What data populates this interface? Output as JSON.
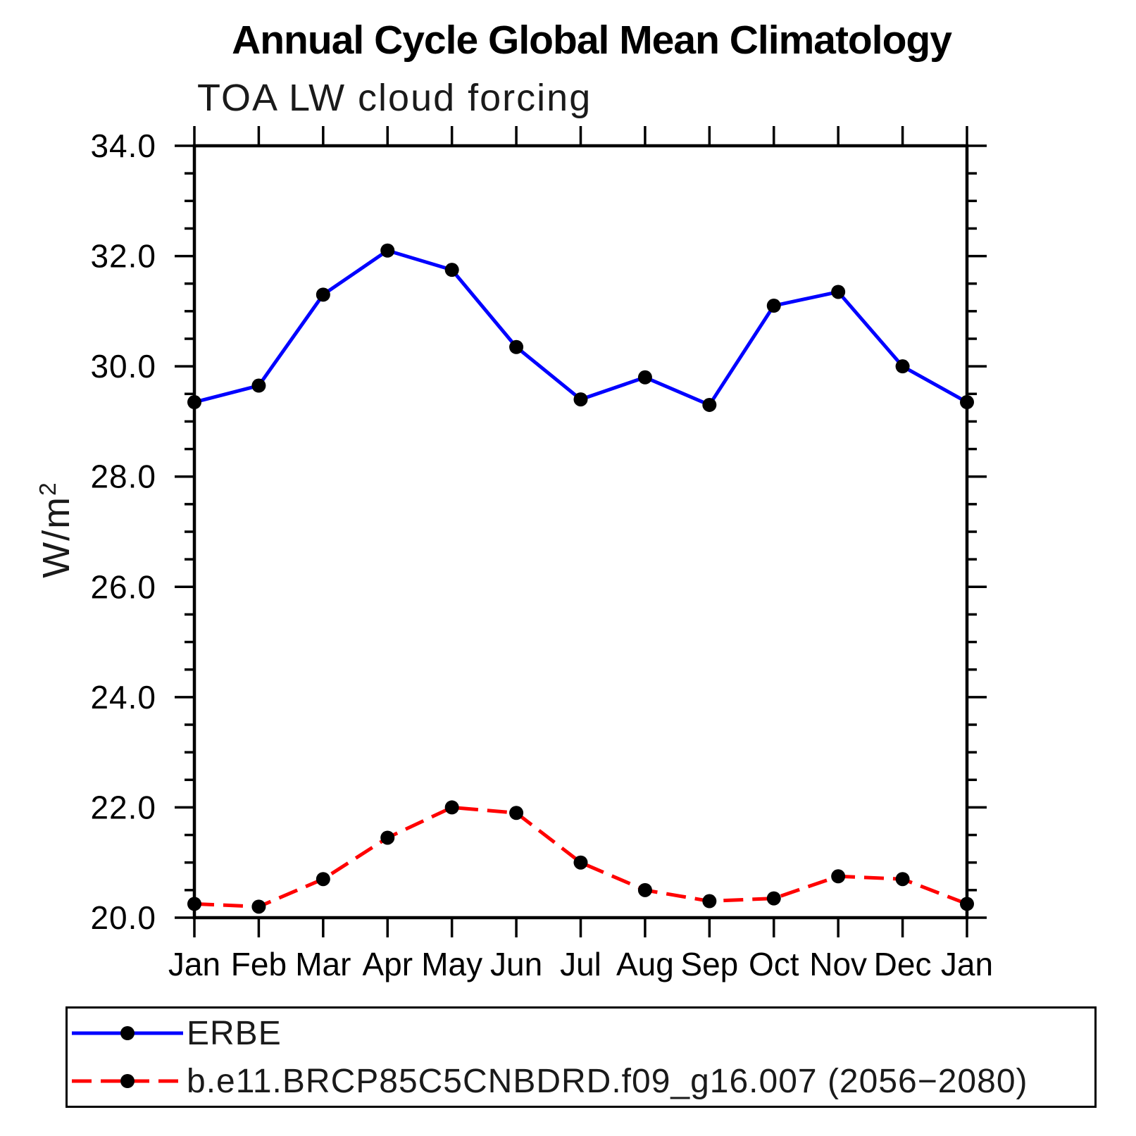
{
  "page": {
    "background": "#ffffff"
  },
  "chart_data": {
    "type": "line",
    "title": "Annual Cycle Global Mean Climatology",
    "subtitle": "TOA LW cloud forcing",
    "ylabel": {
      "base": "W/m",
      "sup": "2"
    },
    "ylim": [
      20.0,
      34.0
    ],
    "y_major_tick_interval": 2.0,
    "y_minor_tick_interval": 0.5,
    "y_major_tick_labels": [
      "20.0",
      "22.0",
      "24.0",
      "26.0",
      "28.0",
      "30.0",
      "32.0",
      "34.0"
    ],
    "x_tick_labels": [
      "Jan",
      "Feb",
      "Mar",
      "Apr",
      "May",
      "Jun",
      "Jul",
      "Aug",
      "Sep",
      "Oct",
      "Nov",
      "Dec",
      "Jan"
    ],
    "grid": false,
    "legend_position": "bottom",
    "axis_color": "#000000",
    "marker_color": "#000000",
    "series": [
      {
        "name": "ERBE",
        "color": "#0000ff",
        "line_style": "solid",
        "marker": "filled-circle",
        "values": [
          29.35,
          29.65,
          31.3,
          32.1,
          31.75,
          30.35,
          29.4,
          29.8,
          29.3,
          31.1,
          31.35,
          30.0,
          29.35
        ]
      },
      {
        "name": "b.e11.BRCP85C5CNBDRD.f09_g16.007 (2056−2080)",
        "color": "#ff0000",
        "line_style": "dashed",
        "marker": "filled-circle",
        "values": [
          20.25,
          20.2,
          20.7,
          21.45,
          22.0,
          21.9,
          21.0,
          20.5,
          20.3,
          20.35,
          20.75,
          20.7,
          20.25
        ]
      }
    ]
  }
}
